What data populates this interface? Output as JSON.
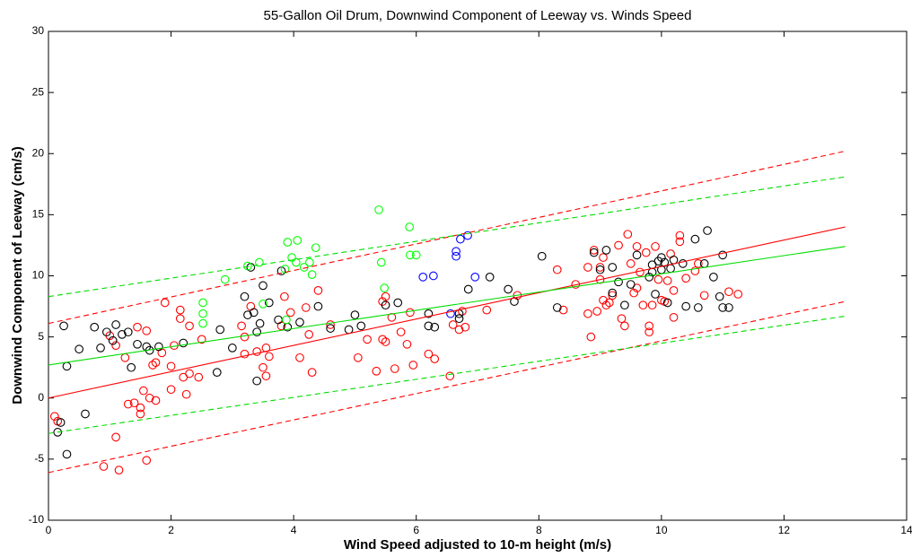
{
  "chart_data": {
    "type": "scatter",
    "title": "55-Gallon Oil Drum, Downwind Component of Leeway vs. Winds Speed",
    "x_label": "Wind Speed adjusted to 10-m height (m/s)",
    "y_label": "Downwind Component of Leeway (cm/s)",
    "xlim": [
      0,
      14
    ],
    "xticks": [
      0,
      2,
      4,
      6,
      8,
      10,
      12,
      14
    ],
    "ylim": [
      -10,
      30
    ],
    "yticks": [
      -10,
      -5,
      0,
      5,
      10,
      15,
      20,
      25,
      30
    ],
    "grid": false,
    "series": [
      {
        "kind": "scatter",
        "color": "#ff0000",
        "x": [
          0.1,
          0.15,
          0.9,
          1.1,
          1.15,
          1.0,
          1.1,
          1.25,
          1.3,
          1.4,
          1.45,
          1.5,
          1.5,
          1.55,
          1.6,
          1.6,
          1.65,
          1.7,
          1.75,
          1.75,
          1.85,
          1.9,
          2.0,
          2.0,
          2.05,
          2.15,
          2.15,
          2.2,
          2.25,
          2.3,
          2.3,
          2.45,
          2.5,
          3.15,
          3.2,
          3.2,
          3.3,
          3.4,
          3.5,
          3.55,
          3.55,
          3.6,
          3.8,
          3.85,
          3.95,
          4.1,
          4.2,
          4.25,
          4.3,
          4.4,
          4.6,
          5.05,
          5.2,
          5.35,
          5.45,
          5.45,
          5.5,
          5.5,
          5.6,
          5.65,
          5.75,
          5.85,
          5.95,
          5.9,
          6.2,
          6.3,
          6.55,
          6.6,
          6.7,
          6.75,
          6.8,
          7.15,
          7.65,
          8.3,
          8.4,
          8.6,
          8.8,
          8.8,
          8.85,
          8.9,
          8.95,
          9.0,
          9.05,
          9.05,
          9.1,
          9.15,
          9.2,
          9.3,
          9.35,
          9.4,
          9.45,
          9.5,
          9.55,
          9.6,
          9.6,
          9.65,
          9.7,
          9.75,
          9.8,
          9.8,
          9.85,
          9.9,
          9.95,
          10.0,
          10.1,
          10.15,
          10.2,
          10.2,
          10.3,
          10.3,
          10.4,
          10.55,
          10.6,
          10.7,
          11.1,
          11.25,
          10.05,
          9.0
        ],
        "values": [
          -1.5,
          -1.9,
          -5.6,
          -3.2,
          -5.9,
          5.1,
          4.3,
          3.3,
          -0.5,
          -0.4,
          5.8,
          -0.8,
          -1.3,
          0.6,
          5.5,
          -5.1,
          0.0,
          2.7,
          -0.2,
          2.9,
          3.7,
          7.8,
          0.7,
          2.6,
          4.3,
          7.2,
          6.5,
          1.7,
          0.3,
          2.0,
          5.9,
          1.7,
          4.8,
          5.9,
          3.6,
          5.0,
          7.5,
          3.8,
          2.5,
          4.1,
          1.8,
          3.4,
          5.9,
          8.3,
          7.0,
          3.3,
          7.4,
          5.2,
          2.1,
          8.8,
          6.0,
          3.3,
          4.8,
          2.2,
          7.9,
          4.8,
          4.6,
          8.3,
          6.6,
          2.4,
          5.4,
          4.4,
          2.7,
          7.0,
          3.6,
          3.2,
          1.8,
          6.0,
          5.6,
          7.1,
          5.8,
          7.2,
          8.4,
          10.5,
          7.2,
          9.3,
          6.9,
          10.7,
          5.0,
          12.1,
          7.1,
          10.7,
          8.0,
          11.5,
          7.6,
          7.8,
          8.4,
          12.5,
          6.5,
          5.9,
          13.4,
          11.0,
          8.6,
          12.4,
          9.0,
          10.3,
          7.6,
          11.9,
          5.9,
          5.4,
          7.6,
          12.4,
          9.7,
          8.0,
          9.6,
          11.8,
          8.8,
          6.6,
          12.8,
          13.3,
          9.8,
          10.4,
          11.0,
          8.4,
          8.7,
          8.5,
          7.9,
          9.7
        ]
      },
      {
        "kind": "scatter",
        "color": "#000000",
        "x": [
          0.15,
          0.2,
          0.3,
          0.25,
          0.3,
          0.5,
          0.6,
          0.75,
          0.85,
          0.95,
          1.05,
          1.1,
          1.2,
          1.3,
          1.35,
          1.45,
          1.6,
          1.65,
          1.8,
          2.2,
          2.75,
          2.8,
          3.0,
          3.2,
          3.25,
          3.3,
          3.35,
          3.4,
          3.45,
          3.4,
          3.5,
          3.6,
          3.75,
          3.8,
          3.9,
          4.1,
          4.4,
          4.6,
          4.9,
          5.0,
          5.1,
          5.5,
          5.7,
          6.2,
          6.2,
          6.3,
          6.7,
          6.7,
          6.85,
          7.2,
          7.5,
          7.6,
          8.05,
          8.3,
          8.9,
          9.0,
          9.1,
          9.2,
          9.3,
          9.4,
          9.5,
          9.6,
          9.8,
          9.85,
          9.9,
          9.95,
          10.0,
          10.0,
          10.05,
          10.1,
          10.15,
          10.35,
          10.4,
          10.6,
          10.55,
          10.75,
          10.7,
          10.85,
          11.0,
          11.0,
          11.1,
          10.95,
          9.2,
          9.85,
          10.2
        ],
        "values": [
          -2.8,
          -2.0,
          -4.6,
          5.9,
          2.6,
          4.0,
          -1.3,
          5.8,
          4.1,
          5.4,
          4.7,
          6.0,
          5.2,
          5.4,
          2.5,
          4.4,
          4.2,
          3.9,
          4.2,
          4.5,
          2.1,
          5.6,
          4.1,
          8.3,
          6.8,
          10.7,
          7.0,
          5.4,
          6.1,
          1.4,
          9.2,
          7.8,
          6.4,
          10.4,
          5.8,
          6.2,
          7.5,
          5.7,
          5.6,
          6.8,
          5.9,
          7.6,
          7.8,
          6.9,
          5.9,
          5.8,
          6.5,
          6.9,
          8.9,
          9.9,
          8.9,
          7.9,
          11.6,
          7.4,
          11.9,
          10.5,
          12.1,
          10.7,
          9.5,
          7.6,
          9.3,
          11.7,
          9.9,
          10.9,
          8.5,
          11.2,
          10.5,
          11.5,
          11.1,
          7.8,
          10.6,
          11.0,
          7.5,
          7.4,
          13.0,
          13.7,
          11.0,
          9.9,
          11.7,
          7.4,
          7.4,
          8.3,
          8.6,
          10.3,
          11.3
        ]
      },
      {
        "kind": "scatter",
        "color": "#00ff00",
        "x": [
          2.52,
          2.52,
          2.52,
          2.88,
          3.25,
          3.44,
          3.9,
          4.06,
          3.97,
          4.04,
          3.86,
          4.36,
          4.26,
          4.3,
          4.17,
          3.88,
          5.39,
          5.43,
          5.48,
          5.89,
          5.9,
          6.0,
          3.5
        ],
        "values": [
          7.8,
          6.9,
          6.1,
          9.7,
          10.8,
          11.1,
          12.75,
          12.9,
          11.5,
          11.1,
          10.55,
          12.3,
          11.1,
          10.1,
          10.7,
          6.4,
          15.4,
          11.1,
          9.0,
          14.0,
          11.7,
          11.7,
          7.7
        ]
      },
      {
        "kind": "scatter",
        "color": "#0000ff",
        "x": [
          6.11,
          6.28,
          6.72,
          6.84,
          6.65,
          6.65,
          6.96,
          6.56
        ],
        "values": [
          9.9,
          10.0,
          13.0,
          13.3,
          12.0,
          11.6,
          9.9,
          6.9
        ]
      },
      {
        "kind": "line",
        "color": "#ff0000",
        "dash": false,
        "x": [
          0,
          13
        ],
        "values": [
          0,
          14
        ]
      },
      {
        "kind": "line",
        "color": "#00dd00",
        "dash": false,
        "x": [
          0,
          13
        ],
        "values": [
          2.7,
          12.4
        ]
      },
      {
        "kind": "line",
        "color": "#ff0000",
        "dash": true,
        "x": [
          0,
          13
        ],
        "values": [
          6.1,
          20.2
        ]
      },
      {
        "kind": "line",
        "color": "#ff0000",
        "dash": true,
        "x": [
          0,
          13
        ],
        "values": [
          -6.1,
          7.9
        ]
      },
      {
        "kind": "line",
        "color": "#00dd00",
        "dash": true,
        "x": [
          0,
          13
        ],
        "values": [
          8.3,
          18.1
        ]
      },
      {
        "kind": "line",
        "color": "#00dd00",
        "dash": true,
        "x": [
          0,
          13
        ],
        "values": [
          -2.9,
          6.7
        ]
      }
    ]
  }
}
